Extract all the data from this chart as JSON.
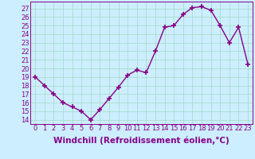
{
  "x": [
    0,
    1,
    2,
    3,
    4,
    5,
    6,
    7,
    8,
    9,
    10,
    11,
    12,
    13,
    14,
    15,
    16,
    17,
    18,
    19,
    20,
    21,
    22,
    23
  ],
  "y": [
    19,
    18,
    17,
    16,
    15.5,
    15,
    14,
    15.2,
    16.5,
    17.8,
    19.2,
    19.8,
    19.5,
    22,
    24.8,
    25,
    26.3,
    27.1,
    27.2,
    26.8,
    25,
    23,
    24.8,
    20.5
  ],
  "line_color": "#880088",
  "marker": "+",
  "marker_size": 5,
  "marker_lw": 1.2,
  "bg_color": "#cceeff",
  "grid_color": "#aaddcc",
  "xlabel": "Windchill (Refroidissement éolien,°C)",
  "xlabel_fontsize": 7.5,
  "ylabel_ticks": [
    14,
    15,
    16,
    17,
    18,
    19,
    20,
    21,
    22,
    23,
    24,
    25,
    26,
    27
  ],
  "ylim": [
    13.5,
    27.8
  ],
  "xlim": [
    -0.5,
    23.5
  ],
  "xtick_labels": [
    "0",
    "1",
    "2",
    "3",
    "4",
    "5",
    "6",
    "7",
    "8",
    "9",
    "10",
    "11",
    "12",
    "13",
    "14",
    "15",
    "16",
    "17",
    "18",
    "19",
    "20",
    "21",
    "22",
    "23"
  ],
  "tick_fontsize": 6,
  "label_color": "#880088"
}
